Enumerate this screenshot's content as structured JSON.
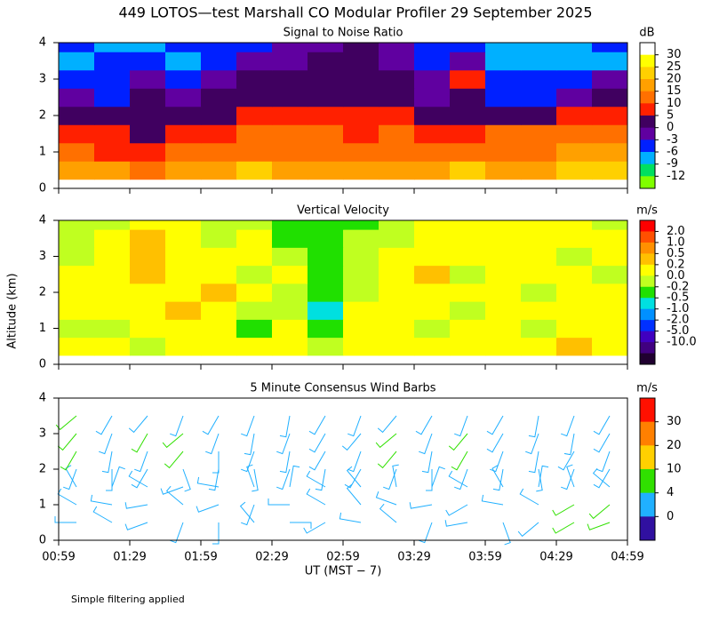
{
  "title": "449 LOTOS—test Marshall CO Modular Profiler 29 September 2025",
  "ylabel": "Altitude (km)",
  "note": "Simple filtering applied",
  "chart_data": [
    {
      "type": "heatmap",
      "title": "Signal to Noise Ratio",
      "ylim": [
        0,
        4
      ],
      "yticks": [
        0,
        1,
        2,
        3,
        4
      ],
      "altitudes": [
        0.5,
        1,
        1.5,
        2,
        2.5,
        3,
        3.5,
        4
      ],
      "z": [
        [
          18,
          16,
          14,
          17,
          18,
          20,
          19,
          18,
          17,
          18,
          19,
          20,
          18,
          19,
          20,
          22
        ],
        [
          10,
          9,
          8,
          11,
          12,
          14,
          13,
          12,
          13,
          14,
          12,
          13,
          14,
          14,
          15,
          16
        ],
        [
          6,
          5,
          4,
          6,
          8,
          10,
          11,
          10,
          9,
          11,
          8,
          9,
          10,
          10,
          12,
          12
        ],
        [
          2,
          1,
          1,
          3,
          4,
          5,
          6,
          6,
          5,
          6,
          3,
          4,
          3,
          4,
          5,
          6
        ],
        [
          -3,
          -4,
          0,
          -1,
          0,
          1,
          2,
          2,
          1,
          0,
          -1,
          1,
          -4,
          -5,
          -3,
          0
        ],
        [
          -4,
          -6,
          -3,
          -5,
          -2,
          0,
          1,
          3,
          2,
          1,
          -2,
          8,
          -5,
          -6,
          -5,
          -3
        ],
        [
          -7,
          -4,
          -6,
          -8,
          -4,
          -3,
          -1,
          0,
          2,
          -2,
          -6,
          -3,
          -9,
          -8,
          -9,
          -7
        ],
        [
          -6,
          -9,
          -7,
          -5,
          -6,
          -4,
          -2,
          -1,
          0,
          -3,
          -5,
          -4,
          -7,
          -9,
          -8,
          -6
        ]
      ],
      "colorbar": {
        "unit": "dB",
        "ticks": [
          30,
          25,
          20,
          15,
          10,
          5,
          0,
          -3,
          -6,
          -9,
          -12
        ],
        "colors": [
          "#ffffff",
          "#ffff00",
          "#ffd000",
          "#ffa000",
          "#ff7000",
          "#ff2000",
          "#400060",
          "#6000a0",
          "#0020ff",
          "#00b0ff",
          "#00e060",
          "#80ff00"
        ]
      }
    },
    {
      "type": "heatmap",
      "title": "Vertical Velocity",
      "ylim": [
        0,
        4
      ],
      "yticks": [
        0,
        1,
        2,
        3,
        4
      ],
      "altitudes": [
        0.5,
        1,
        1.5,
        2,
        2.5,
        3,
        3.5,
        4
      ],
      "z": [
        [
          0.1,
          0.1,
          -0.1,
          0.1,
          0.1,
          0.0,
          0.1,
          -0.1,
          0.1,
          0.1,
          0.1,
          0.1,
          0.1,
          0.1,
          0.3,
          0.1
        ],
        [
          -0.1,
          -0.1,
          0.1,
          0.1,
          0.1,
          -0.3,
          0.1,
          -0.3,
          0.1,
          0.1,
          -0.1,
          0.1,
          0.1,
          -0.1,
          0.1,
          0.1
        ],
        [
          0.1,
          0.1,
          0.1,
          0.3,
          0.1,
          -0.1,
          -0.1,
          -0.6,
          0.1,
          0.1,
          0.1,
          -0.1,
          0.1,
          0.1,
          0.1,
          0.1
        ],
        [
          0.1,
          0.1,
          0.1,
          0.1,
          0.3,
          0.1,
          -0.1,
          -0.3,
          -0.1,
          0.1,
          0.1,
          0.1,
          0.1,
          -0.1,
          0.1,
          0.1
        ],
        [
          0.1,
          0.1,
          0.3,
          0.1,
          0.1,
          -0.1,
          0.1,
          -0.3,
          -0.1,
          0.1,
          0.3,
          -0.1,
          0.1,
          0.1,
          0.1,
          -0.1
        ],
        [
          -0.1,
          0.1,
          0.3,
          0.1,
          0.1,
          0.1,
          -0.1,
          -0.3,
          -0.1,
          0.1,
          0.1,
          0.1,
          0.1,
          0.1,
          -0.1,
          0.1
        ],
        [
          -0.1,
          0.1,
          0.3,
          0.1,
          -0.1,
          0.1,
          -0.3,
          -0.3,
          -0.1,
          -0.1,
          0.1,
          0.1,
          0.1,
          0.1,
          0.1,
          0.1
        ],
        [
          -0.1,
          -0.1,
          0.1,
          0.1,
          -0.1,
          -0.1,
          -0.3,
          -0.3,
          -0.3,
          -0.1,
          0.1,
          0.1,
          0.1,
          0.1,
          0.1,
          -0.1
        ]
      ],
      "colorbar": {
        "unit": "m/s",
        "ticks": [
          {
            "value": 2,
            "label": "2.0"
          },
          {
            "value": 1,
            "label": "1.0"
          },
          0.5,
          0.2,
          {
            "value": 0,
            "label": "0.0"
          },
          -0.2,
          -0.5,
          {
            "value": -1,
            "label": "-1.0"
          },
          {
            "value": -2,
            "label": "-2.0"
          },
          {
            "value": -5,
            "label": "-5.0"
          },
          {
            "value": -10,
            "label": "-10.0"
          }
        ],
        "colors": [
          "#ff0000",
          "#ff5000",
          "#ff9000",
          "#ffc000",
          "#ffff00",
          "#c0ff20",
          "#20e000",
          "#00e0e0",
          "#0090ff",
          "#0030ff",
          "#4000c0",
          "#400080",
          "#200030"
        ]
      }
    },
    {
      "type": "barbs",
      "title": "5 Minute Consensus Wind Barbs",
      "ylim": [
        0,
        4
      ],
      "yticks": [
        0,
        1,
        2,
        3,
        4
      ],
      "altitudes": [
        0.5,
        1,
        1.5,
        2,
        2.5,
        3,
        3.5
      ],
      "speed": [
        [
          2,
          2,
          3,
          2,
          1,
          2,
          2,
          3,
          2,
          2,
          1,
          2,
          2,
          3,
          5,
          6
        ],
        [
          3,
          2,
          2,
          3,
          2,
          3,
          2,
          2,
          3,
          2,
          2,
          3,
          2,
          3,
          5,
          5
        ],
        [
          2,
          3,
          2,
          2,
          3,
          2,
          3,
          2,
          2,
          3,
          2,
          2,
          3,
          2,
          2,
          3
        ],
        [
          3,
          2,
          3,
          2,
          2,
          3,
          2,
          3,
          2,
          2,
          3,
          2,
          3,
          2,
          3,
          2
        ],
        [
          5,
          3,
          2,
          5,
          3,
          2,
          2,
          3,
          2,
          5,
          3,
          5,
          2,
          3,
          2,
          3
        ],
        [
          5,
          3,
          6,
          5,
          3,
          3,
          2,
          3,
          3,
          5,
          3,
          5,
          3,
          3,
          2,
          3
        ],
        [
          5,
          3,
          3,
          3,
          3,
          3,
          2,
          3,
          3,
          3,
          3,
          3,
          3,
          3,
          3,
          3
        ]
      ],
      "direction": [
        [
          270,
          300,
          250,
          200,
          180,
          320,
          90,
          240,
          280,
          310,
          200,
          260,
          160,
          230,
          240,
          250
        ],
        [
          300,
          280,
          260,
          310,
          250,
          200,
          270,
          300,
          320,
          290,
          260,
          240,
          280,
          300,
          240,
          230
        ],
        [
          330,
          20,
          300,
          250,
          280,
          340,
          10,
          300,
          320,
          350,
          20,
          300,
          330,
          10,
          340,
          310
        ],
        [
          200,
          180,
          210,
          160,
          190,
          170,
          200,
          190,
          210,
          200,
          180,
          200,
          190,
          170,
          200,
          210
        ],
        [
          210,
          190,
          200,
          220,
          180,
          200,
          190,
          210,
          200,
          220,
          190,
          210,
          200,
          190,
          210,
          200
        ],
        [
          220,
          200,
          210,
          230,
          200,
          190,
          200,
          210,
          220,
          230,
          200,
          220,
          210,
          200,
          190,
          210
        ],
        [
          230,
          210,
          220,
          200,
          210,
          200,
          190,
          210,
          200,
          220,
          210,
          200,
          210,
          190,
          200,
          210
        ]
      ],
      "colorbar": {
        "unit": "m/s",
        "ticks": [
          30,
          20,
          10,
          4,
          0
        ],
        "colors": [
          "#ff1000",
          "#ff8000",
          "#ffd000",
          "#30e000",
          "#20b0ff",
          "#3010a0"
        ]
      },
      "xticks": [
        "00:59",
        "01:29",
        "01:59",
        "02:29",
        "02:59",
        "03:29",
        "03:59",
        "04:29",
        "04:59"
      ],
      "xlabel": "UT  (MST − 7)"
    }
  ]
}
